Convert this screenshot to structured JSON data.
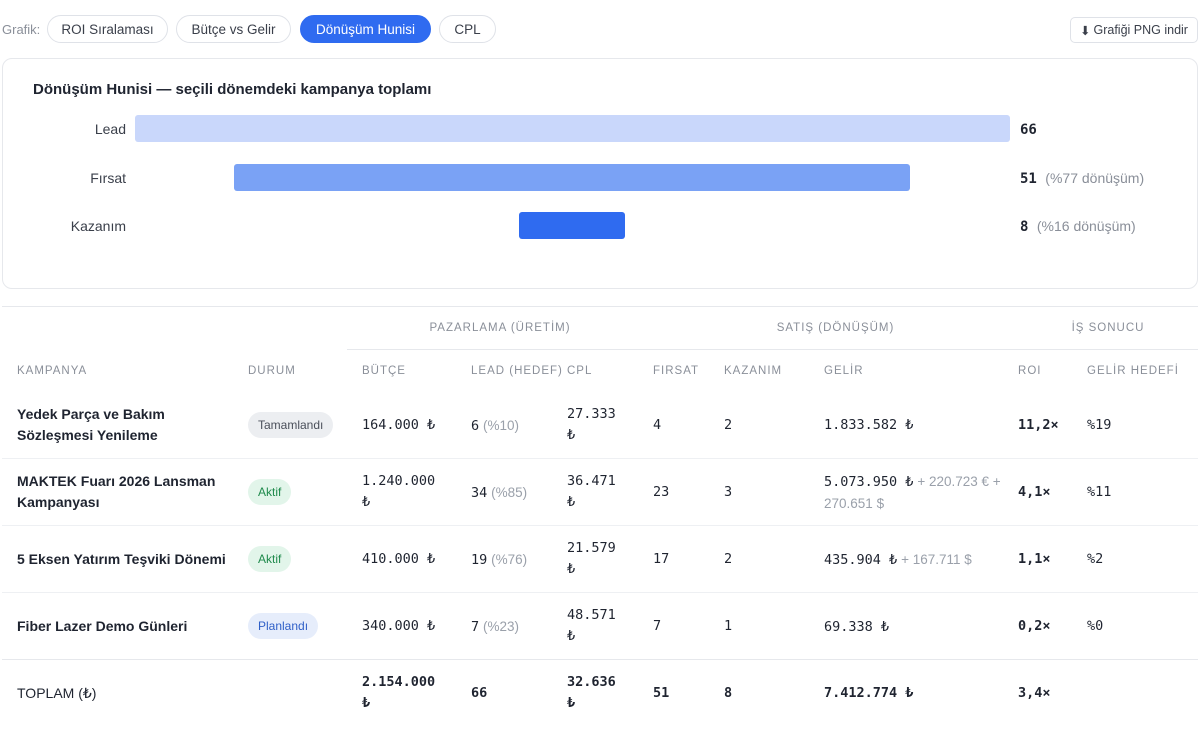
{
  "toolbar": {
    "label": "Grafik:",
    "tabs": [
      {
        "label": "ROI Sıralaması",
        "active": false
      },
      {
        "label": "Bütçe vs Gelir",
        "active": false
      },
      {
        "label": "Dönüşüm Hunisi",
        "active": true
      },
      {
        "label": "CPL",
        "active": false
      }
    ],
    "download_label": "Grafiği PNG indir",
    "download_icon": "download-arrow-icon"
  },
  "chart_data": {
    "type": "bar",
    "title": "Dönüşüm Hunisi — seçili dönemdeki kampanya toplamı",
    "categories": [
      "Lead",
      "Fırsat",
      "Kazanım"
    ],
    "values": [
      66,
      51,
      8
    ],
    "conversion_labels": [
      "",
      "(%77 dönüşüm)",
      "(%16 dönüşüm)"
    ],
    "colors": [
      "#c9d7fb",
      "#7aa2f5",
      "#2f6bf0"
    ]
  },
  "table": {
    "groups": {
      "marketing": "PAZARLAMA (ÜRETİM)",
      "sales": "SATIŞ (DÖNÜŞÜM)",
      "result": "İŞ SONUCU"
    },
    "headers": {
      "campaign": "KAMPANYA",
      "status": "DURUM",
      "budget": "BÜTÇE",
      "lead": "LEAD (HEDEF)",
      "cpl": "CPL",
      "opportunity": "FIRSAT",
      "won": "KAZANIM",
      "revenue": "GELİR",
      "roi": "ROI",
      "revenue_target": "GELİR HEDEFİ"
    },
    "rows": [
      {
        "name_line1": "Yedek Parça ve Bakım",
        "name_line2": "Sözleşmesi Yenileme",
        "status": "Tamamlandı",
        "status_type": "done",
        "budget_line1": "164.000 ₺",
        "budget_line2": "",
        "lead": "6",
        "lead_pct": "(%10)",
        "cpl_line1": "27.333",
        "cpl_line2": "₺",
        "opportunity": "4",
        "won": "2",
        "revenue": "1.833.582 ₺",
        "revenue_extra_line1": "",
        "revenue_extra_line2": "",
        "roi": "11,2×",
        "revenue_target": "%19"
      },
      {
        "name_line1": "MAKTEK Fuarı 2026 Lansman",
        "name_line2": "Kampanyası",
        "status": "Aktif",
        "status_type": "active",
        "budget_line1": "1.240.000",
        "budget_line2": "₺",
        "lead": "34",
        "lead_pct": "(%85)",
        "cpl_line1": "36.471",
        "cpl_line2": "₺",
        "opportunity": "23",
        "won": "3",
        "revenue": "5.073.950 ₺",
        "revenue_extra_line1": "+ 220.723 € +",
        "revenue_extra_line2": "270.651 $",
        "roi": "4,1×",
        "revenue_target": "%11"
      },
      {
        "name_line1": "5 Eksen Yatırım Teşviki Dönemi",
        "name_line2": "",
        "status": "Aktif",
        "status_type": "active",
        "budget_line1": "410.000 ₺",
        "budget_line2": "",
        "lead": "19",
        "lead_pct": "(%76)",
        "cpl_line1": "21.579",
        "cpl_line2": "₺",
        "opportunity": "17",
        "won": "2",
        "revenue": "435.904 ₺",
        "revenue_extra_line1": "+ 167.711 $",
        "revenue_extra_line2": "",
        "roi": "1,1×",
        "revenue_target": "%2"
      },
      {
        "name_line1": "Fiber Lazer Demo Günleri",
        "name_line2": "",
        "status": "Planlandı",
        "status_type": "plan",
        "budget_line1": "340.000 ₺",
        "budget_line2": "",
        "lead": "7",
        "lead_pct": "(%23)",
        "cpl_line1": "48.571",
        "cpl_line2": "₺",
        "opportunity": "7",
        "won": "1",
        "revenue": "69.338 ₺",
        "revenue_extra_line1": "",
        "revenue_extra_line2": "",
        "roi": "0,2×",
        "revenue_target": "%0"
      }
    ],
    "total": {
      "label": "TOPLAM (₺)",
      "budget_line1": "2.154.000",
      "budget_line2": "₺",
      "lead": "66",
      "cpl_line1": "32.636",
      "cpl_line2": "₺",
      "opportunity": "51",
      "won": "8",
      "revenue": "7.412.774 ₺",
      "roi": "3,4×"
    }
  }
}
